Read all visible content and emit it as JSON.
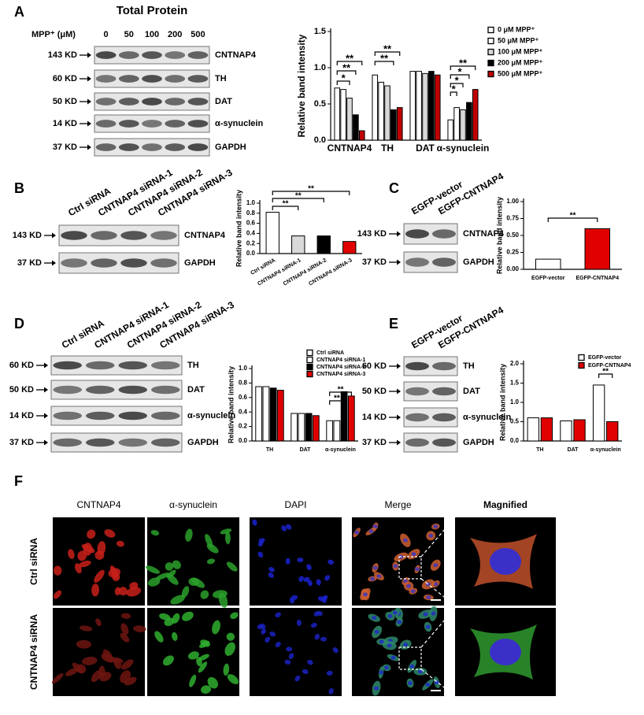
{
  "panel_labels": [
    "A",
    "B",
    "C",
    "D",
    "E",
    "F"
  ],
  "blots": [
    {
      "title": "Total Protein",
      "header": "MPP⁺ (μM)",
      "lanes": [
        "0",
        "50",
        "100",
        "200",
        "500"
      ],
      "rows": [
        {
          "kd": "143 KD",
          "protein": "CNTNAP4"
        },
        {
          "kd": "60 KD",
          "protein": "TH"
        },
        {
          "kd": "50 KD",
          "protein": "DAT"
        },
        {
          "kd": "14 KD",
          "protein": "α-synuclein"
        },
        {
          "kd": "37 KD",
          "protein": "GAPDH"
        }
      ]
    },
    {
      "lanes": [
        "Ctrl siRNA",
        "CNTNAP4 siRNA-1",
        "CNTNAP4 siRNA-2",
        "CNTNAP4 siRNA-3"
      ],
      "rows": [
        {
          "kd": "143 KD",
          "protein": "CNTNAP4"
        },
        {
          "kd": "37 KD",
          "protein": "GAPDH"
        }
      ]
    },
    {
      "lanes": [
        "EGFP-vector",
        "EGFP-CNTNAP4"
      ],
      "rows": [
        {
          "kd": "143 KD",
          "protein": "CNTNAP4"
        },
        {
          "kd": "37 KD",
          "protein": "GAPDH"
        }
      ]
    },
    {
      "lanes": [
        "Ctrl siRNA",
        "CNTNAP4 siRNA-1",
        "CNTNAP4 siRNA-2",
        "CNTNAP4 siRNA-3"
      ],
      "rows": [
        {
          "kd": "60 KD",
          "protein": "TH"
        },
        {
          "kd": "50 KD",
          "protein": "DAT"
        },
        {
          "kd": "14 KD",
          "protein": "α-synuclein"
        },
        {
          "kd": "37 KD",
          "protein": "GAPDH"
        }
      ]
    },
    {
      "lanes": [
        "EGFP-vector",
        "EGFP-CNTNAP4"
      ],
      "rows": [
        {
          "kd": "60 KD",
          "protein": "TH"
        },
        {
          "kd": "50 KD",
          "protein": "DAT"
        },
        {
          "kd": "14 KD",
          "protein": "α-synuclein"
        },
        {
          "kd": "37 KD",
          "protein": "GAPDH"
        }
      ]
    }
  ],
  "chart_data": [
    {
      "type": "bar",
      "y_label": "Relative band intensity",
      "categories": [
        "CNTNAP4",
        "TH",
        "DAT",
        "α-synuclein"
      ],
      "series": [
        {
          "name": "0 μM MPP⁺",
          "color": "#ffffff",
          "values": [
            0.72,
            0.9,
            0.95,
            0.28
          ]
        },
        {
          "name": "50 μM MPP⁺",
          "color": "#ffffff",
          "values": [
            0.7,
            0.8,
            0.95,
            0.45
          ]
        },
        {
          "name": "100 μM MPP⁺",
          "color": "#d9d9d9",
          "values": [
            0.58,
            0.75,
            0.92,
            0.42
          ]
        },
        {
          "name": "200 μM MPP⁺",
          "color": "#000000",
          "values": [
            0.35,
            0.42,
            0.95,
            0.52
          ]
        },
        {
          "name": "500 μM MPP⁺",
          "color": "#c00000",
          "values": [
            0.13,
            0.45,
            0.9,
            0.7
          ]
        }
      ],
      "ylim": [
        0,
        1.5
      ],
      "yticks": [
        {
          "value": 0,
          "label": "0.0"
        },
        {
          "value": 0.5,
          "label": "0.5"
        },
        {
          "value": 1,
          "label": "1.0"
        },
        {
          "value": 1.5,
          "label": "1.5"
        }
      ],
      "annotations": [
        "**",
        "**",
        "*",
        "**",
        "**",
        "**",
        "*",
        "*",
        "*"
      ]
    },
    {
      "type": "bar",
      "y_label": "Relative band intensity",
      "categories": [
        "Ctrl siRNA",
        "CNTNAP4 siRNA-1",
        "CNTNAP4 siRNA-2",
        "CNTNAP4 siRNA-3"
      ],
      "values": [
        0.82,
        0.35,
        0.35,
        0.24
      ],
      "colors": [
        "#ffffff",
        "#d9d9d9",
        "#000000",
        "#e00000"
      ],
      "ylim": [
        0,
        1
      ],
      "yticks": [
        {
          "value": 0,
          "label": "0.0"
        },
        0.2,
        0.4,
        0.6,
        0.8,
        {
          "value": 1,
          "label": "1.0"
        }
      ],
      "annotations": [
        "**",
        "**",
        "**"
      ]
    },
    {
      "type": "bar",
      "y_label": "Relative band intensity",
      "categories": [
        "EGFP-vector",
        "EGFP-CNTNAP4"
      ],
      "values": [
        0.15,
        0.6
      ],
      "colors": [
        "#ffffff",
        "#e00000"
      ],
      "ylim": [
        0,
        1
      ],
      "yticks": [
        {
          "value": 0,
          "label": "0.00"
        },
        {
          "value": 0.25,
          "label": "0.25"
        },
        {
          "value": 0.5,
          "label": "0.50"
        },
        {
          "value": 0.75,
          "label": "0.75"
        },
        {
          "value": 1,
          "label": "1.00"
        }
      ],
      "annotations": [
        "**"
      ]
    },
    {
      "type": "bar",
      "y_label": "Relative band intensity",
      "categories": [
        "TH",
        "DAT",
        "α-synuclein"
      ],
      "series": [
        {
          "name": "Ctrl siRNA",
          "color": "#ffffff",
          "values": [
            0.75,
            0.38,
            0.28
          ]
        },
        {
          "name": "CNTNAP4 siRNA-1",
          "color": "#ffffff",
          "values": [
            0.75,
            0.38,
            0.28
          ]
        },
        {
          "name": "CNTNAP4 siRNA-2",
          "color": "#000000",
          "values": [
            0.73,
            0.38,
            0.68
          ]
        },
        {
          "name": "CNTNAP4 siRNA-3",
          "color": "#e00000",
          "values": [
            0.7,
            0.35,
            0.62
          ]
        }
      ],
      "ylim": [
        0,
        1
      ],
      "yticks": [
        {
          "value": 0,
          "label": "0.0"
        },
        0.2,
        0.4,
        0.6,
        0.8,
        {
          "value": 1,
          "label": "1.0"
        }
      ],
      "annotations": [
        "**",
        "**"
      ]
    },
    {
      "type": "bar",
      "y_label": "Relative band intensity",
      "categories": [
        "TH",
        "DAT",
        "α-synuclein"
      ],
      "series": [
        {
          "name": "EGFP-vector",
          "color": "#ffffff",
          "values": [
            0.6,
            0.52,
            1.45
          ]
        },
        {
          "name": "EGFP-CNTNAP4",
          "color": "#e00000",
          "values": [
            0.6,
            0.55,
            0.5
          ]
        }
      ],
      "ylim": [
        0,
        2
      ],
      "yticks": [
        {
          "value": 0,
          "label": "0.0"
        },
        {
          "value": 0.5,
          "label": "0.5"
        },
        {
          "value": 1,
          "label": "1.0"
        },
        {
          "value": 1.5,
          "label": "1.5"
        },
        {
          "value": 2,
          "label": "2.0"
        }
      ],
      "annotations": [
        "**"
      ]
    }
  ],
  "microscopy": {
    "columns": [
      "CNTNAP4",
      "α-synuclein",
      "DAPI",
      "Merge",
      "Magnified"
    ],
    "rows": [
      "Ctrl siRNA",
      "CNTNAP4 siRNA"
    ]
  }
}
